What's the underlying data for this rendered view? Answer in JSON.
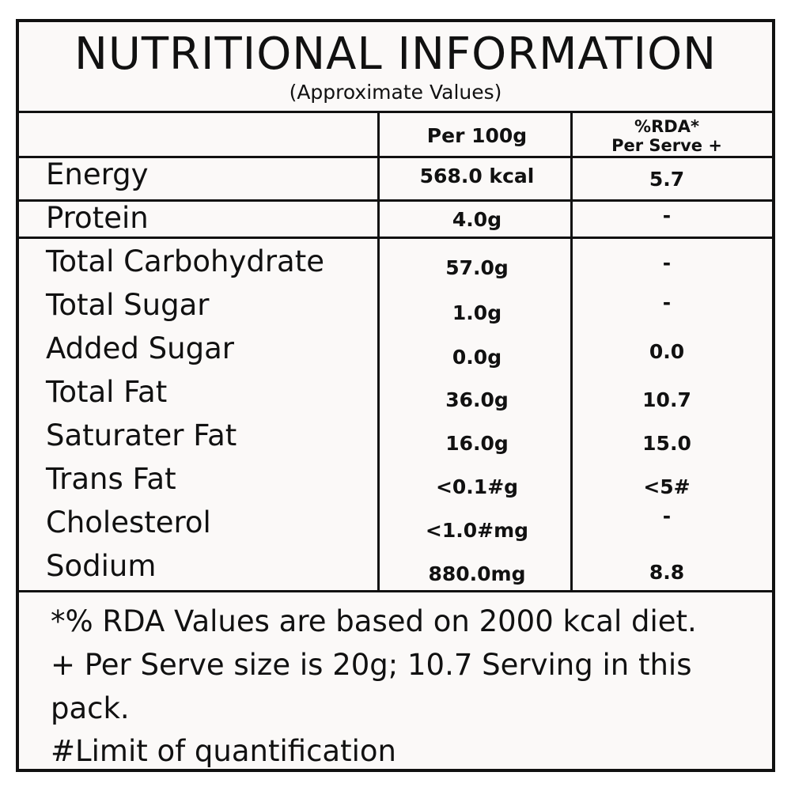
{
  "header": {
    "title": "NUTRITIONAL INFORMATION",
    "subtitle": "(Approximate Values)"
  },
  "columns": {
    "per100g": "Per 100g",
    "rda_line1": "%RDA*",
    "rda_line2": "Per Serve +"
  },
  "rows": [
    {
      "name": "Energy",
      "per100g": "568.0 kcal",
      "rda": "5.7"
    },
    {
      "name": "Protein",
      "per100g": "4.0g",
      "rda": "-"
    },
    {
      "name": "Total Carbohydrate",
      "per100g": "57.0g",
      "rda": "-"
    },
    {
      "name": "Total Sugar",
      "per100g": "1.0g",
      "rda": "-"
    },
    {
      "name": "Added Sugar",
      "per100g": "0.0g",
      "rda": "0.0"
    },
    {
      "name": "Total Fat",
      "per100g": "36.0g",
      "rda": "10.7"
    },
    {
      "name": "Saturater Fat",
      "per100g": "16.0g",
      "rda": "15.0"
    },
    {
      "name": "Trans Fat",
      "per100g": "<0.1#g",
      "rda": "<5#"
    },
    {
      "name": "Cholesterol",
      "per100g": "<1.0#mg",
      "rda": "-"
    },
    {
      "name": "Sodium",
      "per100g": "880.0mg",
      "rda": "8.8"
    }
  ],
  "footnotes": {
    "line1": "*% RDA Values are based on 2000 kcal diet.",
    "line2": "+ Per Serve size is 20g; 10.7 Serving in this",
    "line3": "pack.",
    "line4": "#Limit of quantification"
  }
}
